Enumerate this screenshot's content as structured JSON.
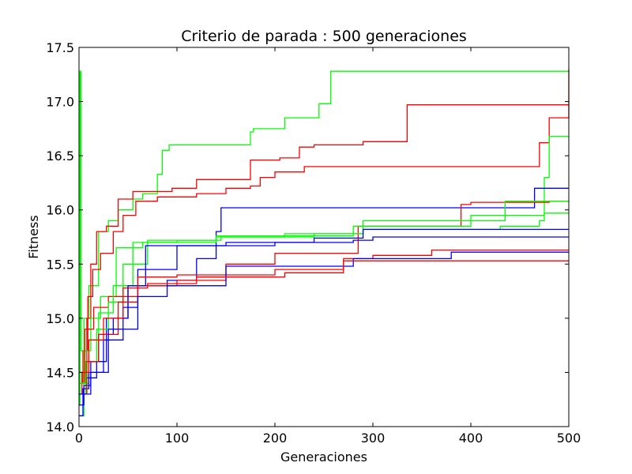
{
  "chart_data": {
    "type": "line",
    "title": "Criterio de parada : 500 generaciones",
    "xlabel": "Generaciones",
    "ylabel": "Fitness",
    "xlim": [
      0,
      500
    ],
    "ylim": [
      14.0,
      17.5
    ],
    "xticks": [
      0,
      100,
      200,
      300,
      400,
      500
    ],
    "yticks": [
      14.0,
      14.5,
      15.0,
      15.5,
      16.0,
      16.5,
      17.0,
      17.5
    ],
    "xtick_labels": [
      "0",
      "100",
      "200",
      "300",
      "400",
      "500"
    ],
    "ytick_labels": [
      "14.0",
      "14.5",
      "15.0",
      "15.5",
      "16.0",
      "16.5",
      "17.0",
      "17.5"
    ],
    "grid": false,
    "legend": "none",
    "series": [
      {
        "color": "#00ff00",
        "step": true,
        "x": [
          0,
          1,
          2,
          5,
          10,
          20,
          30,
          40,
          55,
          65,
          80,
          85,
          92,
          175,
          178,
          210,
          245,
          257,
          500
        ],
        "y": [
          14.2,
          17.28,
          14.7,
          15.0,
          15.3,
          15.8,
          15.9,
          16.0,
          16.1,
          16.15,
          16.33,
          16.55,
          16.6,
          16.72,
          16.75,
          16.85,
          16.98,
          17.28,
          17.28
        ]
      },
      {
        "color": "#ff0000",
        "step": true,
        "x": [
          0,
          3,
          8,
          12,
          18,
          28,
          40,
          55,
          95,
          120,
          175,
          205,
          225,
          240,
          290,
          335,
          500
        ],
        "y": [
          14.3,
          14.5,
          15.0,
          15.5,
          15.8,
          15.85,
          16.1,
          16.17,
          16.2,
          16.28,
          16.46,
          16.48,
          16.58,
          16.6,
          16.63,
          16.97,
          16.97
        ]
      },
      {
        "color": "#ff0000",
        "step": true,
        "x": [
          0,
          4,
          9,
          14,
          22,
          35,
          45,
          58,
          80,
          120,
          150,
          175,
          185,
          200,
          230,
          470,
          480,
          500
        ],
        "y": [
          14.4,
          14.7,
          15.2,
          15.45,
          15.6,
          15.8,
          15.95,
          16.08,
          16.12,
          16.15,
          16.2,
          16.22,
          16.3,
          16.35,
          16.4,
          16.62,
          16.85,
          17.3
        ]
      },
      {
        "color": "#00ff00",
        "step": true,
        "x": [
          0,
          5,
          12,
          22,
          38,
          65,
          100,
          145,
          240,
          290,
          430,
          470,
          475,
          480,
          500
        ],
        "y": [
          14.1,
          14.7,
          15.0,
          15.2,
          15.65,
          15.7,
          15.72,
          15.75,
          15.78,
          15.82,
          15.85,
          15.9,
          16.3,
          16.68,
          16.68
        ]
      },
      {
        "color": "#0000ff",
        "step": true,
        "x": [
          0,
          8,
          18,
          28,
          50,
          90,
          120,
          140,
          145,
          430,
          465,
          500
        ],
        "y": [
          14.3,
          14.45,
          14.6,
          15.0,
          15.3,
          15.35,
          15.55,
          15.8,
          16.02,
          16.02,
          16.2,
          16.2
        ]
      },
      {
        "color": "#ff0000",
        "step": true,
        "x": [
          0,
          6,
          15,
          30,
          60,
          100,
          150,
          200,
          285,
          390,
          400,
          480,
          500
        ],
        "y": [
          14.4,
          14.9,
          15.1,
          15.2,
          15.3,
          15.35,
          15.5,
          15.6,
          15.85,
          16.05,
          16.07,
          16.08,
          16.08
        ]
      },
      {
        "color": "#00ff00",
        "step": true,
        "x": [
          0,
          10,
          20,
          35,
          55,
          100,
          140,
          210,
          290,
          400,
          435,
          470,
          500
        ],
        "y": [
          14.4,
          14.8,
          15.05,
          15.3,
          15.7,
          15.7,
          15.75,
          15.78,
          15.9,
          15.9,
          16.08,
          16.08,
          16.08
        ]
      },
      {
        "color": "#00ff00",
        "step": true,
        "x": [
          0,
          7,
          18,
          30,
          45,
          70,
          140,
          230,
          280,
          400,
          475,
          500
        ],
        "y": [
          14.3,
          14.6,
          14.9,
          15.15,
          15.5,
          15.72,
          15.76,
          15.76,
          15.85,
          15.95,
          15.97,
          15.97
        ]
      },
      {
        "color": "#0000ff",
        "step": true,
        "x": [
          0,
          5,
          12,
          20,
          35,
          50,
          68,
          150,
          240,
          290,
          500
        ],
        "y": [
          14.2,
          14.38,
          14.6,
          14.85,
          15.0,
          15.3,
          15.67,
          15.7,
          15.74,
          15.82,
          15.82
        ]
      },
      {
        "color": "#0000ff",
        "step": true,
        "x": [
          0,
          4,
          10,
          25,
          45,
          60,
          100,
          200,
          280,
          300,
          500
        ],
        "y": [
          14.1,
          14.35,
          14.5,
          14.8,
          15.1,
          15.45,
          15.67,
          15.7,
          15.72,
          15.75,
          15.75
        ]
      },
      {
        "color": "#ff0000",
        "step": true,
        "x": [
          0,
          8,
          20,
          40,
          60,
          100,
          200,
          270,
          300,
          360,
          500
        ],
        "y": [
          14.3,
          14.6,
          14.85,
          15.15,
          15.38,
          15.4,
          15.45,
          15.55,
          15.58,
          15.63,
          15.63
        ]
      },
      {
        "color": "#0000ff",
        "step": true,
        "x": [
          0,
          12,
          30,
          60,
          90,
          150,
          280,
          380,
          500
        ],
        "y": [
          14.3,
          14.5,
          14.9,
          15.2,
          15.3,
          15.48,
          15.55,
          15.61,
          15.61
        ]
      },
      {
        "color": "#ff0000",
        "step": true,
        "x": [
          0,
          10,
          25,
          45,
          70,
          120,
          185,
          210,
          270,
          330,
          500
        ],
        "y": [
          14.5,
          14.8,
          15.0,
          15.28,
          15.32,
          15.38,
          15.38,
          15.42,
          15.53,
          15.53,
          15.53
        ]
      }
    ]
  }
}
